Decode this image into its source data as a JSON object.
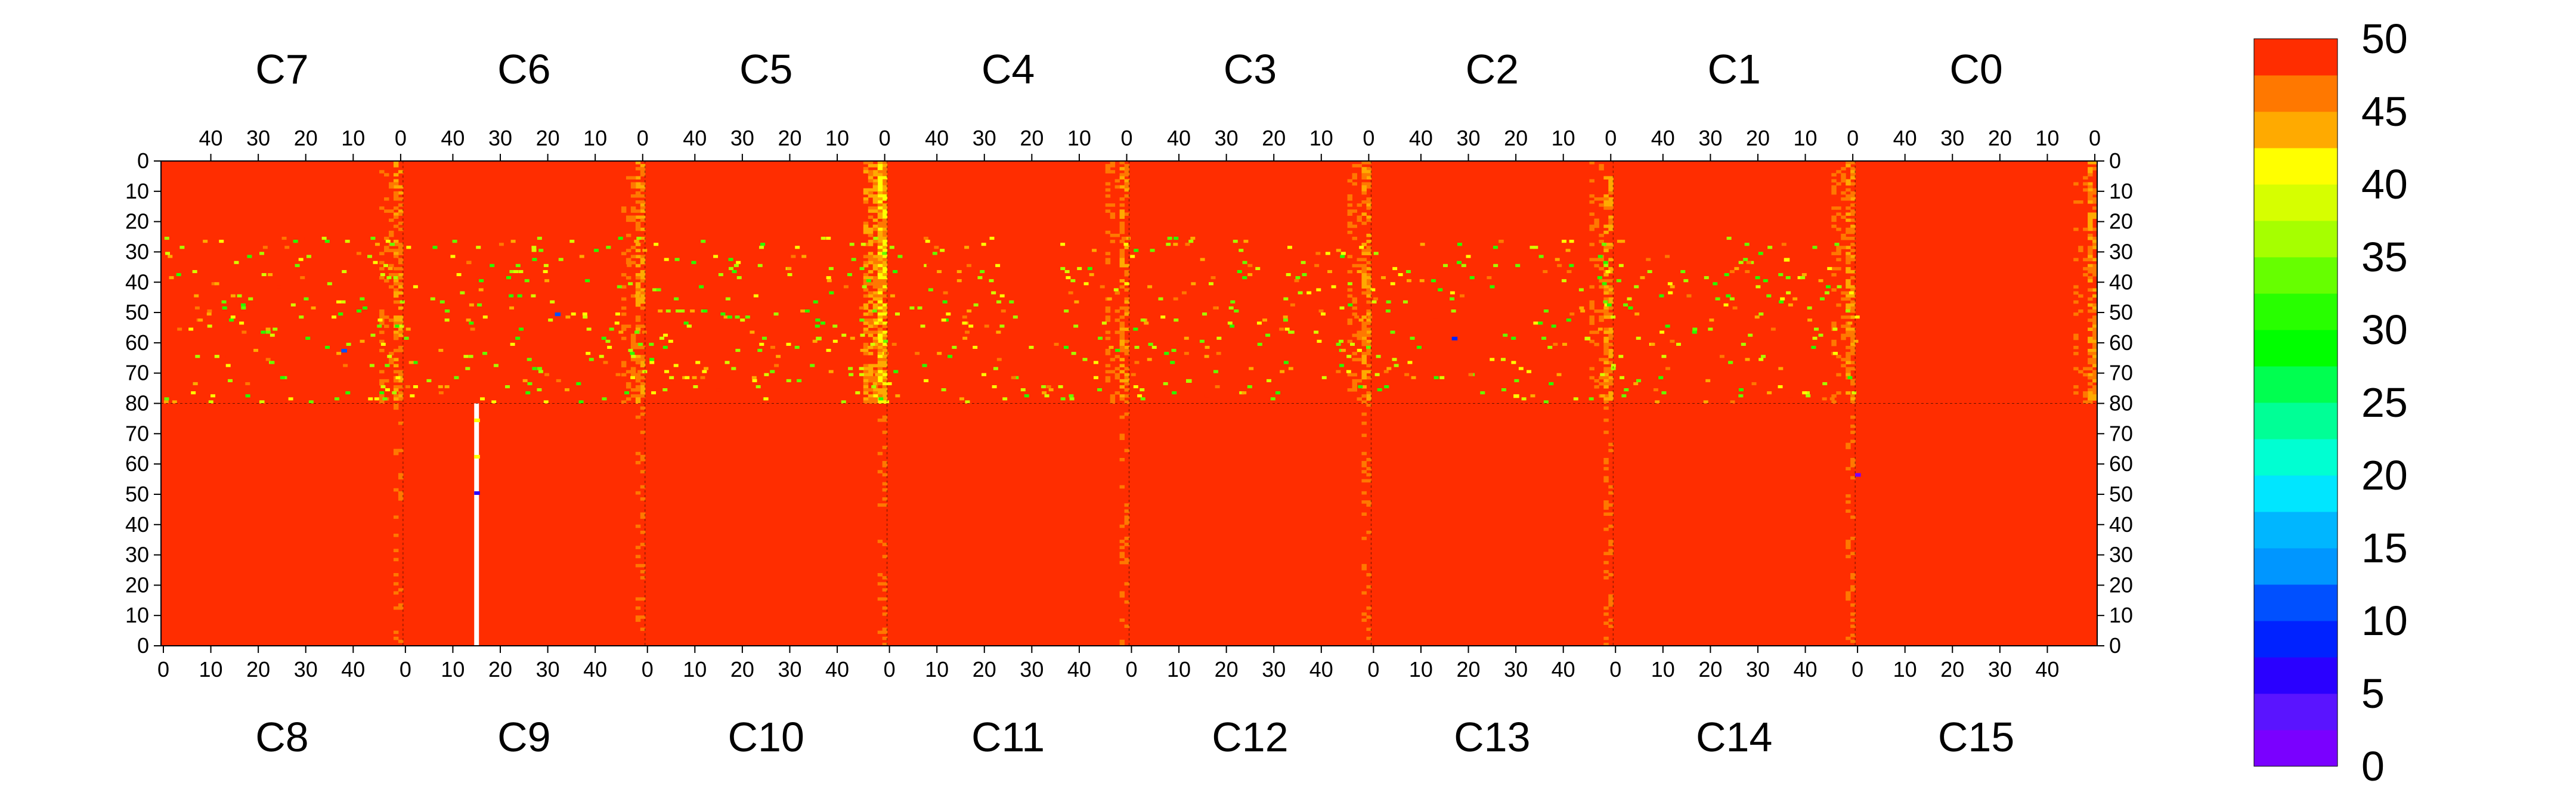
{
  "chart_data": {
    "type": "heatmap",
    "title": "",
    "xlabel": "",
    "ylabel": "",
    "top_chip_labels": [
      "C7",
      "C6",
      "C5",
      "C4",
      "C3",
      "C2",
      "C1",
      "C0"
    ],
    "bottom_chip_labels": [
      "C8",
      "C9",
      "C10",
      "C11",
      "C12",
      "C13",
      "C14",
      "C15"
    ],
    "columns_per_chip": 51,
    "top_axis": {
      "range": [
        0,
        50
      ],
      "direction": "descending",
      "tick_values": [
        40,
        30,
        20,
        10,
        0
      ]
    },
    "bottom_axis": {
      "range": [
        0,
        50
      ],
      "direction": "ascending",
      "tick_values": [
        0,
        10,
        20,
        30,
        40
      ]
    },
    "top_half_y": {
      "range": [
        0,
        80
      ],
      "direction": "top-down",
      "tick_values": [
        0,
        10,
        20,
        30,
        40,
        50,
        60,
        70,
        80
      ]
    },
    "bottom_half_y": {
      "range": [
        0,
        80
      ],
      "direction": "bottom-up",
      "tick_values": [
        70,
        60,
        50,
        40,
        30,
        20,
        10,
        0
      ]
    },
    "colorbar": {
      "range": [
        0,
        50
      ],
      "levels": 20,
      "tick_values": [
        0,
        5,
        10,
        15,
        20,
        25,
        30,
        35,
        40,
        45,
        50
      ],
      "colors": [
        "#7a00ff",
        "#5a14ff",
        "#2a00ff",
        "#0022ff",
        "#0050ff",
        "#0096ff",
        "#00b6ff",
        "#00e6ff",
        "#00ffd2",
        "#00ff96",
        "#00ff50",
        "#00ff00",
        "#28ff00",
        "#66ff00",
        "#a6ff00",
        "#d6ff00",
        "#ffff00",
        "#ffaa00",
        "#ff7800",
        "#ff2d00"
      ]
    },
    "background_value": 50,
    "top_edge_columns": {
      "mean_value": 45,
      "note": "chip boundary column 0 of each top chip shows lower values (orange/yellow stripes)"
    },
    "notable_cells": [
      {
        "chip": "C9",
        "x": 15,
        "y": 74,
        "value": 40
      },
      {
        "chip": "C9",
        "x": 15,
        "y": 50,
        "value": 5
      },
      {
        "chip": "C9",
        "x": 15,
        "y": 62,
        "value": 42
      },
      {
        "chip": "C15",
        "x": 0,
        "y": 56,
        "value": 0
      },
      {
        "chip": "C2",
        "x": 33,
        "y": 58,
        "value": 8
      },
      {
        "chip": "C7",
        "x": 12,
        "y": 62,
        "value": 12
      },
      {
        "chip": "C6",
        "x": 18,
        "y": 50,
        "value": 10
      },
      {
        "chip": "C1",
        "x": 14,
        "y": 32,
        "value": 40
      },
      {
        "chip": "C2",
        "x": 5,
        "y": 58,
        "value": 38
      },
      {
        "chip": "C5",
        "x": 14,
        "y": 58,
        "value": 35
      },
      {
        "chip": "C3",
        "x": 38,
        "y": 72,
        "value": 37
      },
      {
        "chip": "C13",
        "x": 30,
        "y": 82,
        "value": 40
      }
    ],
    "dead_column": {
      "chip": "C9",
      "x": 15,
      "y_range": [
        0,
        79
      ]
    }
  }
}
